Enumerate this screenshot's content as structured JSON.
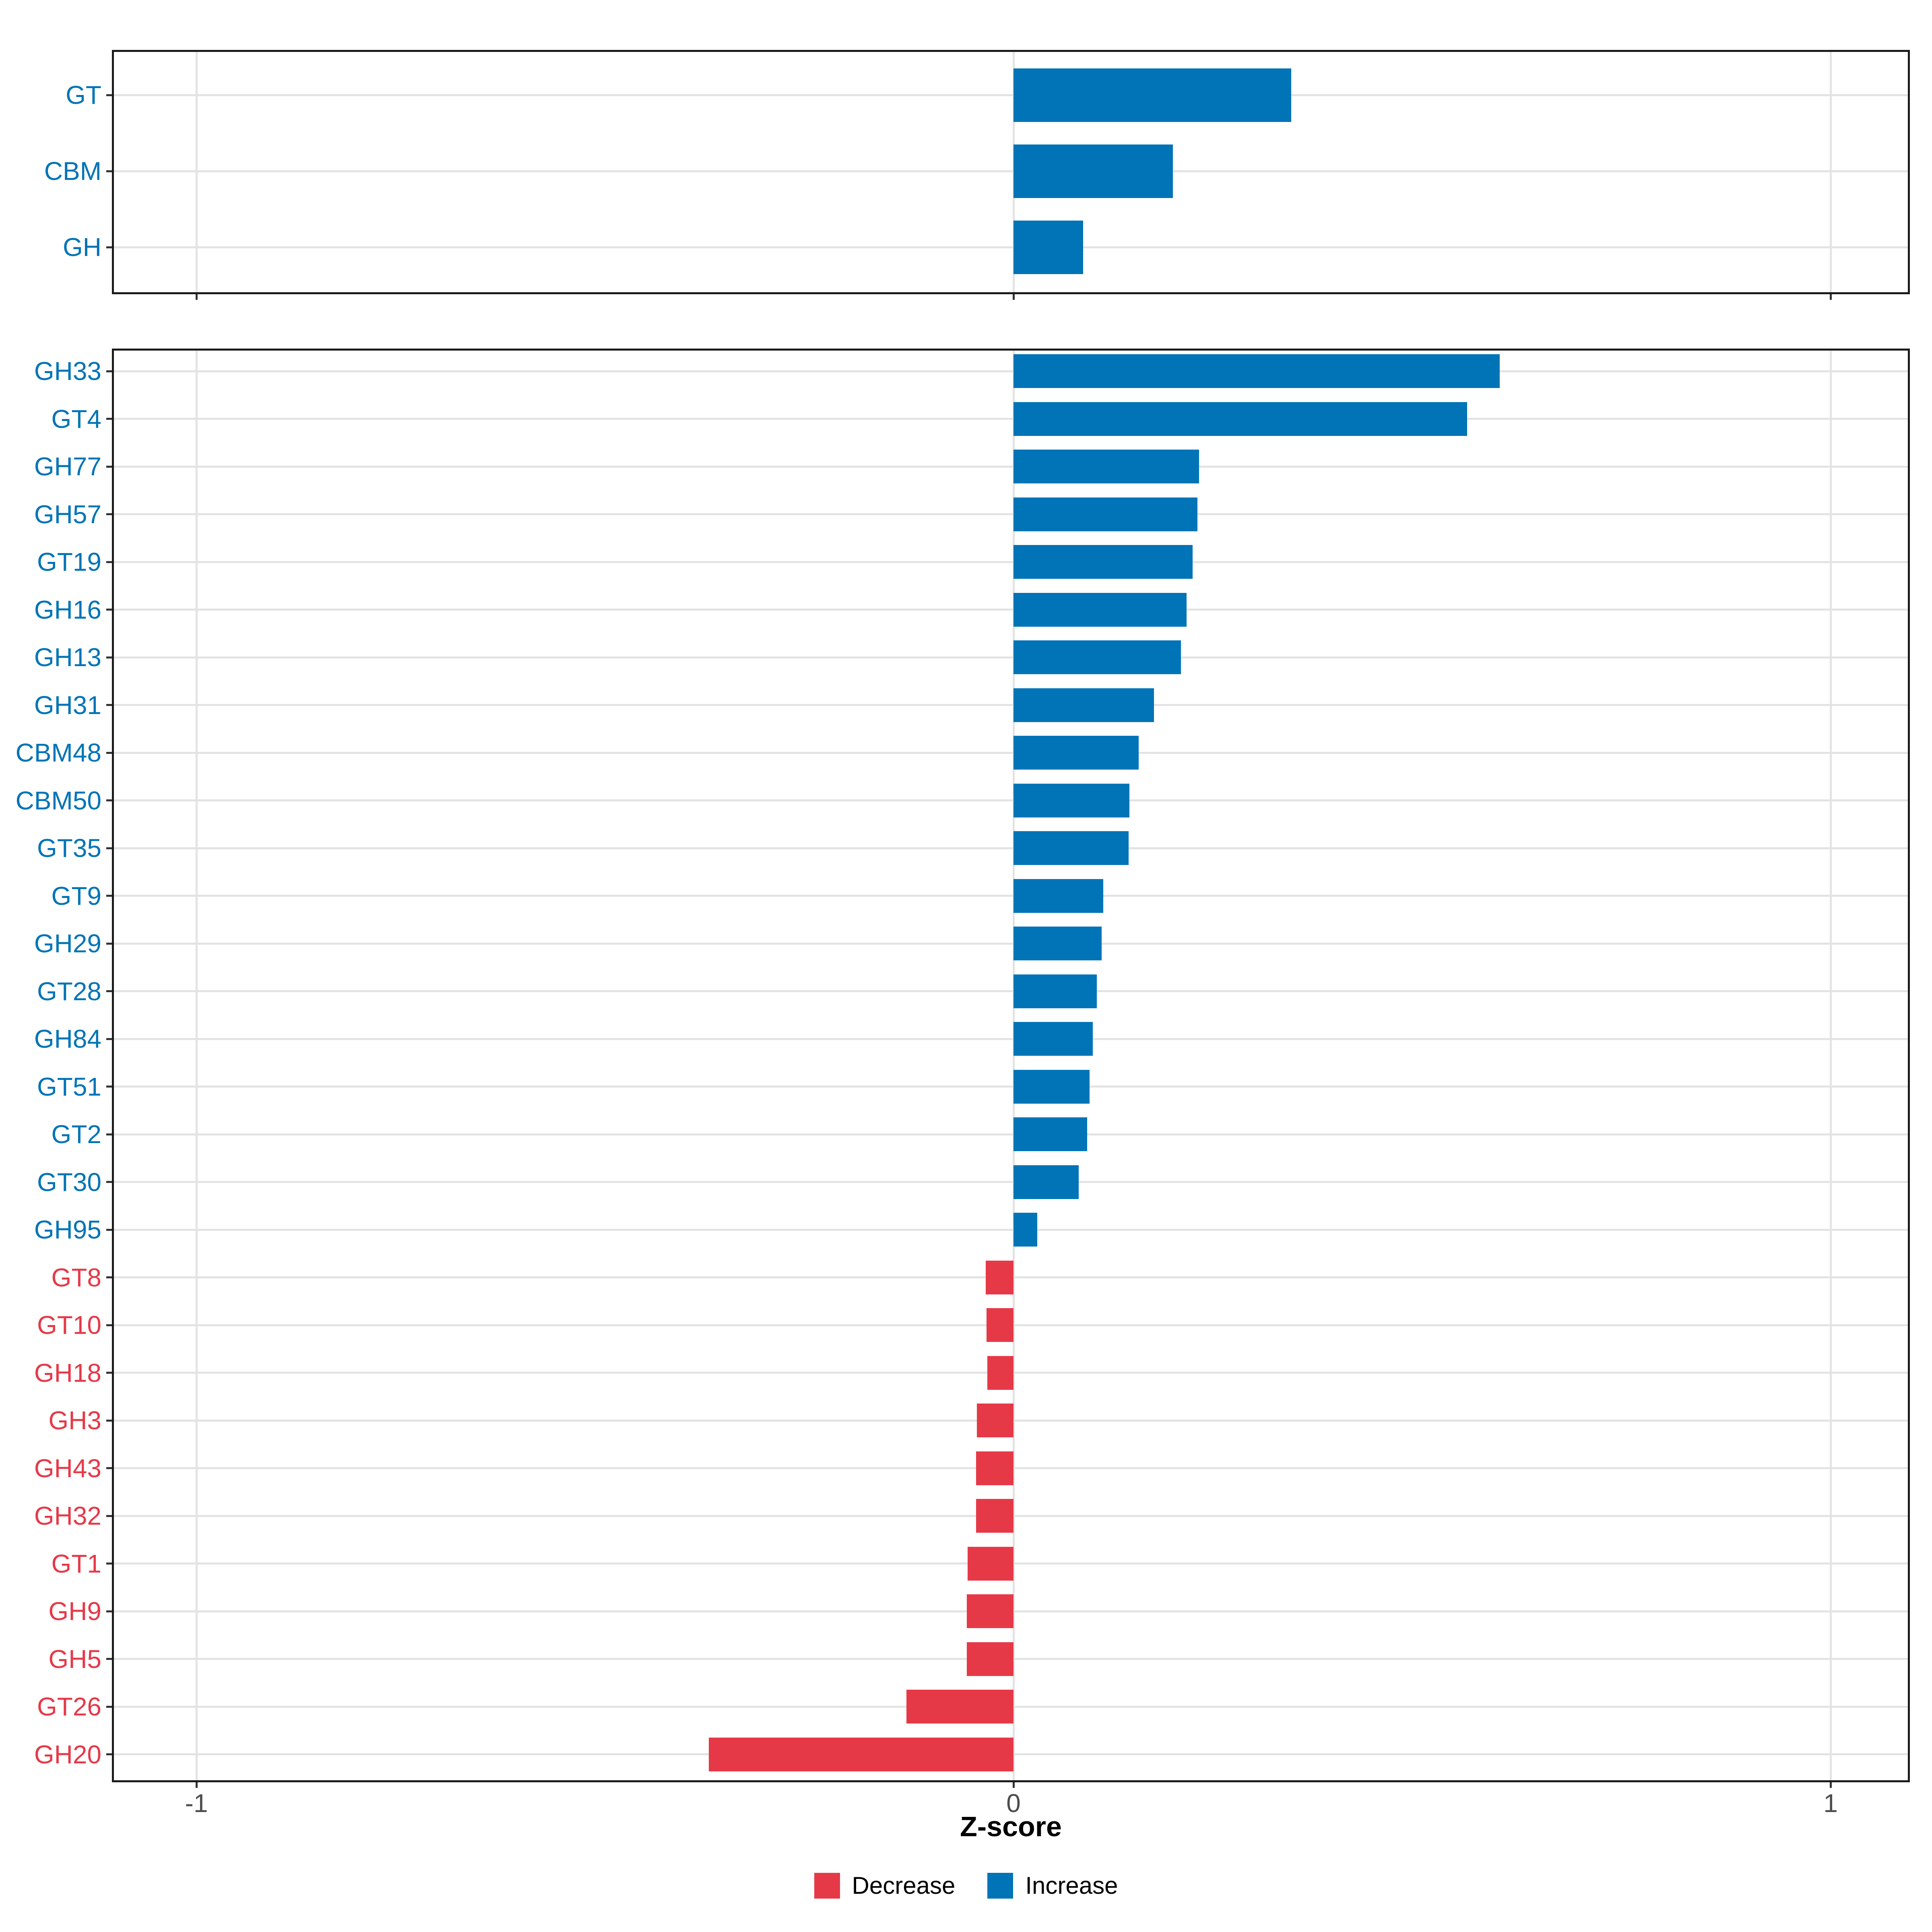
{
  "figure": {
    "background": "#FFFFFF",
    "xlabel": "Z-score",
    "x_ticks": [
      {
        "value": -1,
        "label": "-1"
      },
      {
        "value": 0,
        "label": "0"
      },
      {
        "value": 1,
        "label": "1"
      }
    ],
    "colors": {
      "increase": "#0074B6",
      "decrease": "#E63948",
      "grid": "#E3E3E3",
      "panel_border": "#1A1A1A",
      "tick": "#333333",
      "tick_label_text": "#4D4D4D",
      "axis_title_text": "#000000"
    },
    "legend": {
      "items": [
        {
          "label": "Decrease",
          "color": "#E63948"
        },
        {
          "label": "Increase",
          "color": "#0074B6"
        }
      ]
    }
  },
  "chart_data": [
    {
      "type": "bar",
      "orientation": "horizontal",
      "panel": "top",
      "title": "",
      "categories": [
        "GT",
        "CBM",
        "GH"
      ],
      "values": [
        0.34,
        0.195,
        0.085
      ],
      "bar_colors_by_sign": {
        "positive": "Increase",
        "negative": "Decrease"
      },
      "xlabel": "Z-score",
      "xlim": [
        -1.1,
        1.1
      ],
      "xticks": [
        -1,
        0,
        1
      ],
      "x_tick_labels_shown": false,
      "grid": true,
      "legend_position": "none"
    },
    {
      "type": "bar",
      "orientation": "horizontal",
      "panel": "bottom",
      "title": "",
      "categories": [
        "GH33",
        "GT4",
        "GH77",
        "GH57",
        "GT19",
        "GH16",
        "GH13",
        "GH31",
        "CBM48",
        "CBM50",
        "GT35",
        "GT9",
        "GH29",
        "GT28",
        "GH84",
        "GT51",
        "GT2",
        "GT30",
        "GH95",
        "GT8",
        "GT10",
        "GH18",
        "GH3",
        "GH43",
        "GH32",
        "GT1",
        "GH9",
        "GH5",
        "GT26",
        "GH20"
      ],
      "values": [
        0.595,
        0.555,
        0.227,
        0.225,
        0.219,
        0.212,
        0.205,
        0.172,
        0.153,
        0.142,
        0.141,
        0.11,
        0.108,
        0.102,
        0.097,
        0.093,
        0.09,
        0.08,
        0.029,
        -0.034,
        -0.033,
        -0.032,
        -0.045,
        -0.046,
        -0.046,
        -0.056,
        -0.057,
        -0.057,
        -0.131,
        -0.373
      ],
      "bar_colors_by_sign": {
        "positive": "Increase",
        "negative": "Decrease"
      },
      "xlabel": "Z-score",
      "xlim": [
        -1.1,
        1.1
      ],
      "xticks": [
        -1,
        0,
        1
      ],
      "x_tick_labels_shown": true,
      "grid": true,
      "legend_position": "bottom"
    }
  ]
}
